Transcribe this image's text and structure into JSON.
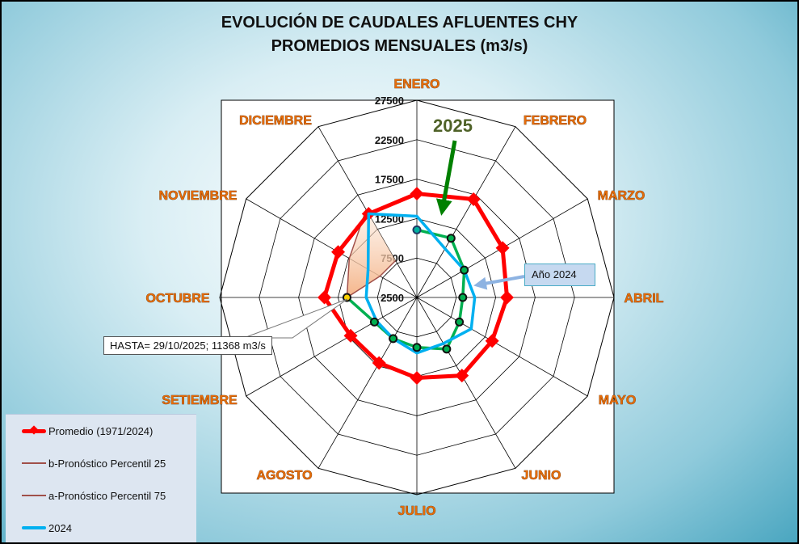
{
  "title_line1": "EVOLUCIÓN DE CAUDALES AFLUENTES CHY",
  "title_line2": "PROMEDIOS MENSUALES (m3/s)",
  "chart_data": {
    "type": "radar",
    "categories": [
      "ENERO",
      "FEBRERO",
      "MARZO",
      "ABRIL",
      "MAYO",
      "JUNIO",
      "JULIO",
      "AGOSTO",
      "SETIEMBRE",
      "OCTUBRE",
      "NOVIEMBRE",
      "DICIEMBRE"
    ],
    "rlim": [
      2500,
      27500
    ],
    "ticks": [
      "2500",
      "7500",
      "12500",
      "17500",
      "22500",
      "27500"
    ],
    "grid": true,
    "legend_position": "bottom-left",
    "series": [
      {
        "name": "Promedio (1971/2024)",
        "color": "#ff0000",
        "marker": "diamond",
        "values": [
          15660,
          16880,
          15050,
          13930,
          13520,
          13930,
          12700,
          12090,
          12200,
          14230,
          14030,
          14740
        ]
      },
      {
        "name": "2024",
        "color": "#00b0f0",
        "values": [
          12800,
          9640,
          9440,
          9840,
          10460,
          9240,
          9540,
          8520,
          8420,
          8930,
          9640,
          14740
        ]
      },
      {
        "name": "b-Pronóstico Percentil 25",
        "color": "#a0504a",
        "values": [
          null,
          null,
          null,
          null,
          null,
          null,
          null,
          null,
          null,
          11368,
          7900,
          7900
        ]
      },
      {
        "name": "a-Pronóstico Percentil 75",
        "color": "#a0504a",
        "values": [
          null,
          null,
          null,
          null,
          null,
          null,
          null,
          null,
          null,
          11368,
          12400,
          15360
        ]
      },
      {
        "values": [
          11070,
          11170,
          9440,
          8320,
          8720,
          10050,
          8830,
          8520,
          8720,
          11368,
          null,
          null
        ],
        "color": "#00b050"
      }
    ]
  },
  "annotations": {
    "label_2025": "2025",
    "label_2024": "Año 2024",
    "hasta": "HASTA= 29/10/2025; 11368 m3/s"
  },
  "colors": {
    "month_label": "#e46c0a",
    "forecast_fill": "#f4b183",
    "arrow_2025": "#008000",
    "arrow_2024": "#8db3e2"
  }
}
